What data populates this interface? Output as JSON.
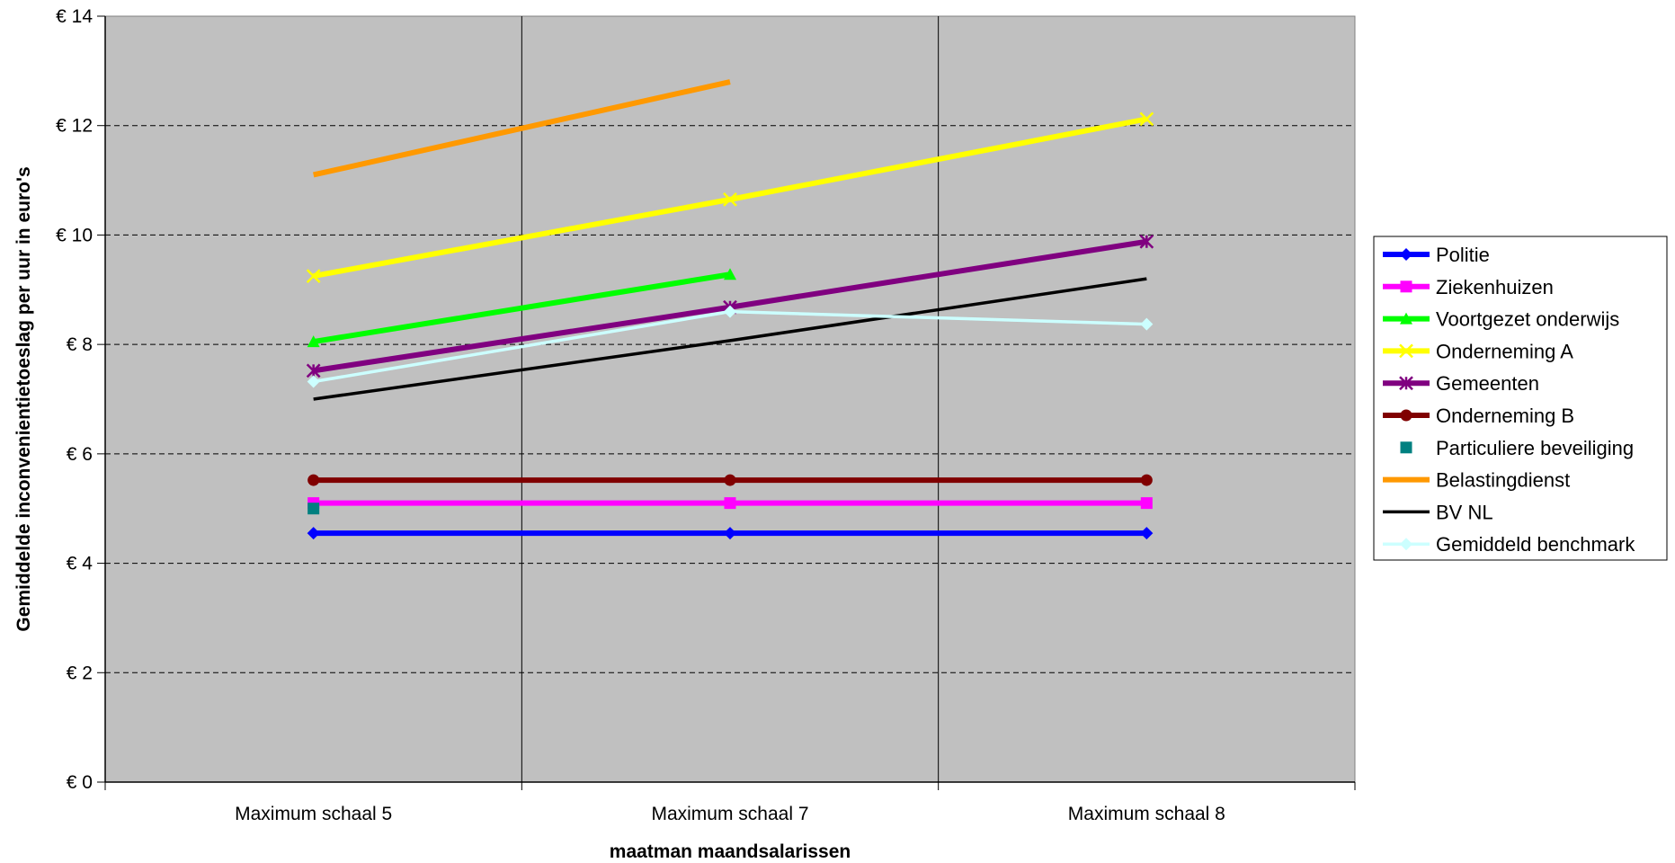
{
  "chart_data": {
    "type": "line",
    "title": "",
    "xlabel": "maatman maandsalarissen",
    "ylabel": "Gemiddelde inconvenientietoeslag per uur in euro's",
    "categories": [
      "Maximum schaal 5",
      "Maximum schaal 7",
      "Maximum schaal 8"
    ],
    "ylim": [
      0,
      14
    ],
    "yticks": [
      0,
      2,
      4,
      6,
      8,
      10,
      12,
      14
    ],
    "ytick_labels": [
      "€ 0",
      "€ 2",
      "€ 4",
      "€ 6",
      "€ 8",
      "€ 10",
      "€ 12",
      "€ 14"
    ],
    "grid": "horizontal dashed, vertical solid",
    "plot_background": "#c0c0c0",
    "legend_position": "right",
    "series": [
      {
        "name": "Politie",
        "values": [
          4.55,
          4.55,
          4.55
        ],
        "color": "#0000ff",
        "marker": "diamond",
        "line": true
      },
      {
        "name": "Ziekenhuizen",
        "values": [
          5.1,
          5.1,
          5.1
        ],
        "color": "#ff00ff",
        "marker": "square",
        "line": true
      },
      {
        "name": "Voortgezet onderwijs",
        "values": [
          8.05,
          9.28,
          null
        ],
        "color": "#00ff00",
        "marker": "triangle",
        "line": true
      },
      {
        "name": "Onderneming A",
        "values": [
          9.25,
          10.65,
          12.12
        ],
        "color": "#ffff00",
        "marker": "x",
        "line": true
      },
      {
        "name": "Gemeenten",
        "values": [
          7.52,
          8.68,
          9.88
        ],
        "color": "#800080",
        "marker": "star",
        "line": true
      },
      {
        "name": "Onderneming B",
        "values": [
          5.52,
          5.52,
          5.52
        ],
        "color": "#800000",
        "marker": "circle",
        "line": true
      },
      {
        "name": "Particuliere beveiliging",
        "values": [
          5.0,
          null,
          null
        ],
        "color": "#008080",
        "marker": "square",
        "line": false
      },
      {
        "name": "Belastingdienst",
        "values": [
          11.1,
          12.8,
          null
        ],
        "color": "#ff9900",
        "marker": "none",
        "line": true
      },
      {
        "name": "BV NL",
        "values": [
          7.0,
          8.07,
          9.2
        ],
        "color": "#000000",
        "marker": "none",
        "line": true
      },
      {
        "name": "Gemiddeld benchmark",
        "values": [
          7.32,
          8.6,
          8.37
        ],
        "color": "#ccffff",
        "marker": "diamond",
        "line": true
      }
    ]
  }
}
